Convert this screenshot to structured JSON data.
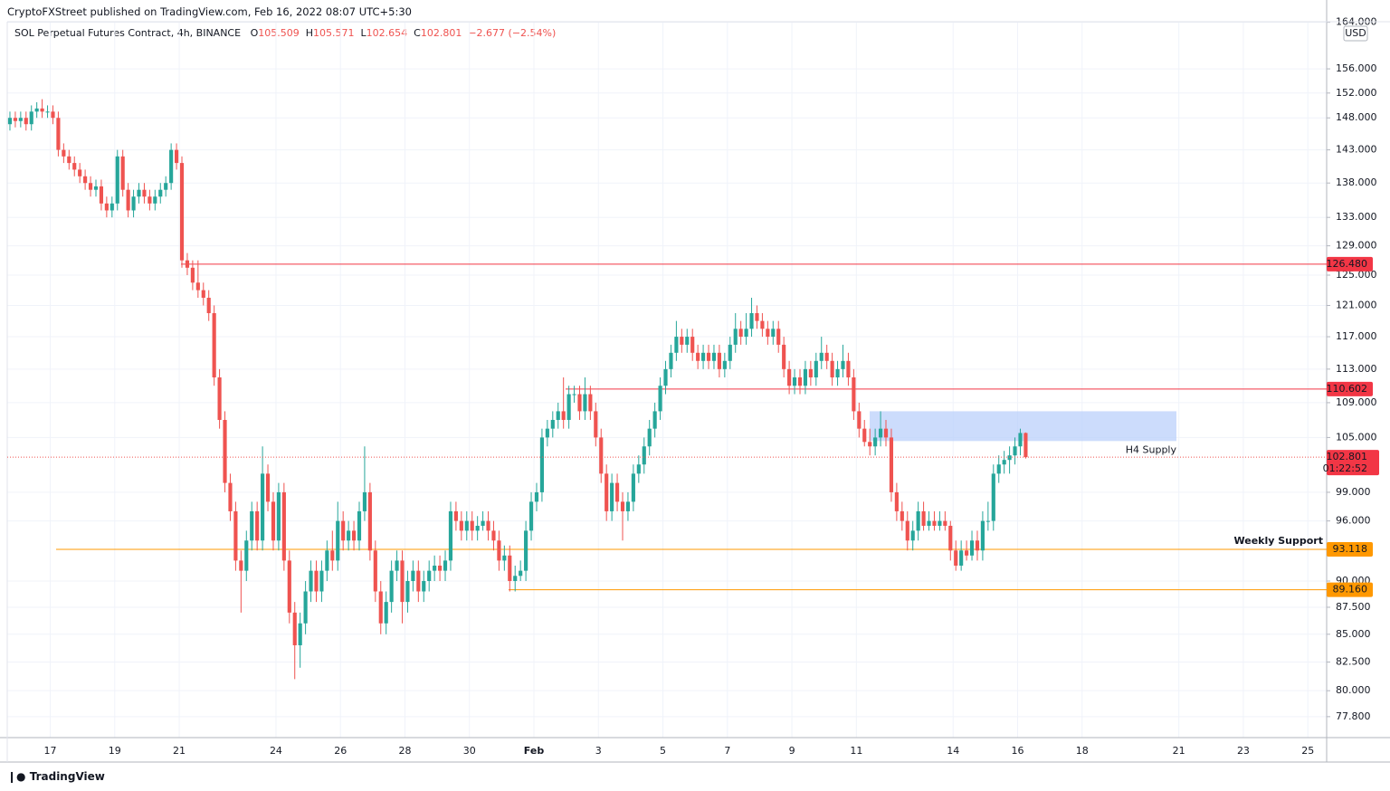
{
  "header": {
    "published": "CryptoFXStreet published on TradingView.com, Feb 16, 2022 08:07 UTC+5:30",
    "brand": "TradingView"
  },
  "chart_data": {
    "type": "candlestick",
    "symbol": "SOL Perpetual Futures Contract, 4h, BINANCE",
    "ohlc_labels": [
      "O",
      "H",
      "L",
      "C"
    ],
    "change": "−2.677 (−2.54%)",
    "currency": "USD",
    "countdown": "01:22:52",
    "log_scale": true,
    "grid": true,
    "up_color": "#26a69a",
    "down_color": "#ef5350",
    "ylim": [
      76.07,
      164.1
    ],
    "yticks": [
      {
        "value": 164,
        "label": "164.000"
      },
      {
        "value": 156,
        "label": "156.000"
      },
      {
        "value": 152,
        "label": "152.000"
      },
      {
        "value": 148,
        "label": "148.000"
      },
      {
        "value": 143,
        "label": "143.000"
      },
      {
        "value": 138,
        "label": "138.000"
      },
      {
        "value": 133,
        "label": "133.000"
      },
      {
        "value": 129,
        "label": "129.000"
      },
      {
        "value": 125,
        "label": "125.000"
      },
      {
        "value": 121,
        "label": "121.000"
      },
      {
        "value": 117,
        "label": "117.000"
      },
      {
        "value": 113,
        "label": "113.000"
      },
      {
        "value": 109,
        "label": "109.000"
      },
      {
        "value": 105,
        "label": "105.000"
      },
      {
        "value": 99,
        "label": "99.000"
      },
      {
        "value": 96,
        "label": "96.000"
      },
      {
        "value": 90,
        "label": "90.000"
      },
      {
        "value": 87.5,
        "label": "87.500"
      },
      {
        "value": 85,
        "label": "85.000"
      },
      {
        "value": 82.5,
        "label": "82.500"
      },
      {
        "value": 80,
        "label": "80.000"
      },
      {
        "value": 77.8,
        "label": "77.800"
      }
    ],
    "xlim": [
      -0.5,
      245
    ],
    "xticks": [
      {
        "value": 7.5,
        "label": "17"
      },
      {
        "value": 19.5,
        "label": "19"
      },
      {
        "value": 31.5,
        "label": "21"
      },
      {
        "value": 49.5,
        "label": "24"
      },
      {
        "value": 61.5,
        "label": "26"
      },
      {
        "value": 73.5,
        "label": "28"
      },
      {
        "value": 85.5,
        "label": "30"
      },
      {
        "value": 97.5,
        "label": "Feb"
      },
      {
        "value": 109.5,
        "label": "3"
      },
      {
        "value": 121.5,
        "label": "5"
      },
      {
        "value": 133.5,
        "label": "7"
      },
      {
        "value": 145.5,
        "label": "9"
      },
      {
        "value": 157.5,
        "label": "11"
      },
      {
        "value": 175.5,
        "label": "14"
      },
      {
        "value": 187.5,
        "label": "16"
      },
      {
        "value": 199.5,
        "label": "18"
      },
      {
        "value": 217.5,
        "label": "21"
      },
      {
        "value": 229.5,
        "label": "23"
      },
      {
        "value": 241.5,
        "label": "25"
      }
    ],
    "levels": [
      {
        "value": 126.48,
        "label": "126.480",
        "color": "#f23645"
      },
      {
        "value": 110.602,
        "label": "110.602",
        "color": "#f23645"
      },
      {
        "value": 93.118,
        "label": "93.118",
        "color": "#ff9800",
        "text": "Weekly Support"
      },
      {
        "value": 89.16,
        "label": "89.160",
        "color": "#ff9800"
      }
    ],
    "zones": [
      {
        "label": "H4 Supply",
        "low": 104.6,
        "high": 108.0,
        "color": "#bbd0fb",
        "text_color": "#9c27b0"
      }
    ],
    "candles": [
      [
        147,
        149,
        146,
        148
      ],
      [
        148,
        149,
        146.5,
        147.5
      ],
      [
        147.5,
        149,
        146.5,
        148
      ],
      [
        148,
        149,
        146,
        147
      ],
      [
        147,
        150,
        146,
        149
      ],
      [
        149,
        150.5,
        148,
        149.5
      ],
      [
        149.5,
        151,
        148,
        149
      ],
      [
        149,
        150,
        148,
        149
      ],
      [
        149,
        150,
        147,
        148
      ],
      [
        148,
        149,
        142,
        143
      ],
      [
        143,
        144,
        141,
        142
      ],
      [
        142,
        143,
        140,
        141
      ],
      [
        141,
        142,
        139,
        140
      ],
      [
        140,
        141,
        138,
        139
      ],
      [
        139,
        140,
        137,
        138
      ],
      [
        138,
        139,
        136,
        137
      ],
      [
        137,
        138.5,
        136,
        137.5
      ],
      [
        137.5,
        138.5,
        134,
        135
      ],
      [
        135,
        136,
        133,
        134
      ],
      [
        134,
        136,
        133,
        135
      ],
      [
        135,
        143,
        134,
        142
      ],
      [
        142,
        143,
        136,
        137
      ],
      [
        137,
        138,
        133,
        134
      ],
      [
        134,
        137,
        133,
        136
      ],
      [
        136,
        138,
        135,
        137
      ],
      [
        137,
        138,
        135,
        136
      ],
      [
        136,
        137,
        134,
        135
      ],
      [
        135,
        137,
        134,
        136
      ],
      [
        136,
        138,
        135,
        137
      ],
      [
        137,
        139,
        136,
        138
      ],
      [
        138,
        144,
        137,
        143
      ],
      [
        143,
        144,
        140,
        141
      ],
      [
        141,
        142,
        126,
        127
      ],
      [
        127,
        128,
        125,
        126
      ],
      [
        126,
        127,
        123,
        124
      ],
      [
        124,
        127,
        122,
        123
      ],
      [
        123,
        124,
        121,
        122
      ],
      [
        122,
        123,
        119,
        120
      ],
      [
        120,
        121,
        111,
        112
      ],
      [
        112,
        113,
        106,
        107
      ],
      [
        107,
        108,
        99,
        100
      ],
      [
        100,
        101,
        96,
        97
      ],
      [
        97,
        98,
        91,
        92
      ],
      [
        92,
        93,
        87,
        91
      ],
      [
        91,
        95,
        90,
        94
      ],
      [
        94,
        98,
        93,
        97
      ],
      [
        97,
        98,
        93,
        94
      ],
      [
        94,
        104,
        93,
        101
      ],
      [
        101,
        102,
        97,
        98
      ],
      [
        98,
        99,
        93,
        94
      ],
      [
        94,
        100,
        93,
        99
      ],
      [
        99,
        100,
        91,
        92
      ],
      [
        92,
        93,
        86,
        87
      ],
      [
        87,
        88,
        81,
        84
      ],
      [
        84,
        87,
        82,
        86
      ],
      [
        86,
        90,
        85,
        89
      ],
      [
        89,
        92,
        88,
        91
      ],
      [
        91,
        92,
        88,
        89
      ],
      [
        89,
        92,
        88,
        91
      ],
      [
        91,
        94,
        90,
        93
      ],
      [
        93,
        95,
        91,
        92
      ],
      [
        92,
        98,
        91,
        96
      ],
      [
        96,
        97,
        93,
        94
      ],
      [
        94,
        96,
        93,
        95
      ],
      [
        95,
        96,
        93,
        94
      ],
      [
        94,
        98,
        93,
        97
      ],
      [
        97,
        104,
        96,
        99
      ],
      [
        99,
        100,
        92,
        93
      ],
      [
        93,
        94,
        88,
        89
      ],
      [
        89,
        90,
        85,
        86
      ],
      [
        86,
        89,
        85,
        88
      ],
      [
        88,
        92,
        87,
        91
      ],
      [
        91,
        93,
        90,
        92
      ],
      [
        92,
        93,
        86,
        88
      ],
      [
        88,
        91,
        87,
        90
      ],
      [
        90,
        92,
        89,
        91
      ],
      [
        91,
        92,
        88,
        89
      ],
      [
        89,
        91,
        88,
        90
      ],
      [
        90,
        92,
        89,
        91
      ],
      [
        91,
        92.5,
        90,
        91.5
      ],
      [
        91.5,
        92.5,
        90,
        91
      ],
      [
        91,
        93,
        90,
        92
      ],
      [
        92,
        98,
        91,
        97
      ],
      [
        97,
        98,
        95,
        96
      ],
      [
        96,
        97,
        94,
        95
      ],
      [
        95,
        97,
        94,
        96
      ],
      [
        96,
        97,
        94,
        95
      ],
      [
        95,
        96.5,
        94,
        95.5
      ],
      [
        95.5,
        97,
        95,
        96
      ],
      [
        96,
        97,
        94,
        95
      ],
      [
        95,
        96,
        93,
        94
      ],
      [
        94,
        95,
        91,
        92
      ],
      [
        92,
        93.5,
        91,
        92.5
      ],
      [
        92.5,
        93.5,
        89,
        90
      ],
      [
        90,
        91.5,
        89,
        90.5
      ],
      [
        90.5,
        92,
        90,
        91
      ],
      [
        91,
        96,
        90,
        95
      ],
      [
        95,
        99,
        94,
        98
      ],
      [
        98,
        100,
        97,
        99
      ],
      [
        99,
        106,
        98,
        105
      ],
      [
        105,
        107,
        104,
        106
      ],
      [
        106,
        108,
        105,
        107
      ],
      [
        107,
        109,
        106,
        108
      ],
      [
        108,
        112,
        106,
        107
      ],
      [
        107,
        111,
        106,
        110
      ],
      [
        110,
        111,
        109,
        110
      ],
      [
        110,
        111,
        107,
        108
      ],
      [
        108,
        112,
        107,
        110
      ],
      [
        110,
        111,
        107,
        108
      ],
      [
        108,
        109,
        104,
        105
      ],
      [
        105,
        106,
        100,
        101
      ],
      [
        101,
        102,
        96,
        97
      ],
      [
        97,
        101,
        96,
        100
      ],
      [
        100,
        101,
        97,
        98
      ],
      [
        98,
        99,
        94,
        97
      ],
      [
        97,
        99,
        96,
        98
      ],
      [
        98,
        102,
        97,
        101
      ],
      [
        101,
        103,
        100,
        102
      ],
      [
        102,
        105,
        101,
        104
      ],
      [
        104,
        107,
        103,
        106
      ],
      [
        106,
        109,
        105,
        108
      ],
      [
        108,
        112,
        107,
        111
      ],
      [
        111,
        114,
        110,
        113
      ],
      [
        113,
        116,
        112,
        115
      ],
      [
        115,
        119,
        114,
        117
      ],
      [
        117,
        118,
        115,
        116
      ],
      [
        116,
        118,
        115,
        117
      ],
      [
        117,
        118,
        114,
        115
      ],
      [
        115,
        116,
        113,
        114
      ],
      [
        114,
        116,
        113,
        115
      ],
      [
        115,
        116,
        113,
        114
      ],
      [
        114,
        116,
        113,
        115
      ],
      [
        115,
        116,
        112,
        113
      ],
      [
        113,
        115,
        112,
        114
      ],
      [
        114,
        117,
        113,
        116
      ],
      [
        116,
        120,
        115,
        118
      ],
      [
        118,
        119,
        116,
        117
      ],
      [
        117,
        120,
        116,
        118
      ],
      [
        118,
        122,
        117,
        120
      ],
      [
        120,
        121,
        118,
        119
      ],
      [
        119,
        120,
        117,
        118
      ],
      [
        118,
        119,
        116,
        117
      ],
      [
        117,
        119,
        116,
        118
      ],
      [
        118,
        119,
        115,
        116
      ],
      [
        116,
        117,
        112,
        113
      ],
      [
        113,
        114,
        110,
        111
      ],
      [
        111,
        113,
        110,
        112
      ],
      [
        112,
        113,
        110,
        111
      ],
      [
        111,
        114,
        110,
        113
      ],
      [
        113,
        114,
        111,
        112
      ],
      [
        112,
        115,
        111,
        114
      ],
      [
        114,
        117,
        113,
        115
      ],
      [
        115,
        116,
        113,
        114
      ],
      [
        114,
        115,
        111,
        112
      ],
      [
        112,
        114,
        111,
        113
      ],
      [
        113,
        116,
        112,
        114
      ],
      [
        114,
        115,
        111,
        112
      ],
      [
        112,
        113,
        107,
        108
      ],
      [
        108,
        109,
        105,
        106
      ],
      [
        106,
        107,
        104,
        104.5
      ],
      [
        104.5,
        106,
        103,
        104
      ],
      [
        104,
        106,
        103,
        105
      ],
      [
        105,
        108,
        104,
        106
      ],
      [
        106,
        107,
        104,
        105
      ],
      [
        105,
        106,
        98,
        99
      ],
      [
        99,
        100,
        96,
        97
      ],
      [
        97,
        98,
        95,
        96
      ],
      [
        96,
        97,
        93,
        94
      ],
      [
        94,
        96,
        93,
        95
      ],
      [
        95,
        98,
        94,
        97
      ],
      [
        97,
        98,
        95,
        95.5
      ],
      [
        95.5,
        97,
        95,
        96
      ],
      [
        96,
        97,
        95,
        95.5
      ],
      [
        95.5,
        97,
        95,
        96
      ],
      [
        96,
        97,
        95,
        95.5
      ],
      [
        95.5,
        96,
        92,
        93
      ],
      [
        93,
        94,
        91,
        91.5
      ],
      [
        91.5,
        94,
        91,
        93
      ],
      [
        93,
        94,
        92,
        92.5
      ],
      [
        92.5,
        95,
        92,
        94
      ],
      [
        94,
        95,
        92,
        93
      ],
      [
        93,
        97,
        92,
        96
      ],
      [
        96,
        98,
        95,
        96
      ],
      [
        96,
        102,
        95,
        101
      ],
      [
        101,
        103,
        100,
        102
      ],
      [
        102,
        103.5,
        101,
        102.5
      ],
      [
        102.5,
        104,
        101,
        103
      ],
      [
        103,
        105,
        102,
        104
      ],
      [
        104,
        106,
        103,
        105.509
      ],
      [
        105.509,
        105.571,
        102.654,
        102.801
      ]
    ]
  }
}
